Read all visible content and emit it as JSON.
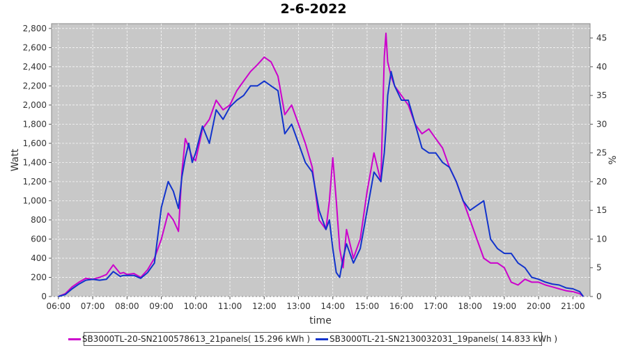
{
  "chart_data": {
    "type": "line",
    "title": "2-6-2022",
    "xlabel": "time",
    "ylabel": "Watt",
    "y2label": "%",
    "xlim": [
      5.8,
      21.5
    ],
    "ylim": [
      0,
      2850
    ],
    "y2lim": [
      0,
      47.5
    ],
    "x_ticks": [
      "06:00",
      "07:00",
      "08:00",
      "09:00",
      "10:00",
      "11:00",
      "12:00",
      "13:00",
      "14:00",
      "15:00",
      "16:00",
      "17:00",
      "18:00",
      "19:00",
      "20:00",
      "21:00"
    ],
    "y_ticks": [
      "0",
      "200",
      "400",
      "600",
      "800",
      "1,000",
      "1,200",
      "1,400",
      "1,600",
      "1,800",
      "2,000",
      "2,200",
      "2,400",
      "2,600",
      "2,800"
    ],
    "y2_ticks": [
      "0",
      "5",
      "10",
      "15",
      "20",
      "25",
      "30",
      "35",
      "40",
      "45"
    ],
    "grid": true,
    "legend_position": "bottom",
    "series": [
      {
        "name": "SB3000TL-20-SN2100578613_21panels( 15.296 kWh )",
        "color": "#cc00cc",
        "x": [
          6.0,
          6.2,
          6.4,
          6.6,
          6.8,
          7.0,
          7.2,
          7.4,
          7.6,
          7.8,
          7.9,
          8.0,
          8.2,
          8.4,
          8.6,
          8.8,
          9.0,
          9.2,
          9.35,
          9.5,
          9.6,
          9.7,
          9.8,
          9.9,
          10.0,
          10.2,
          10.4,
          10.6,
          10.8,
          11.0,
          11.2,
          11.4,
          11.6,
          11.8,
          12.0,
          12.2,
          12.4,
          12.6,
          12.8,
          13.0,
          13.2,
          13.4,
          13.6,
          13.8,
          13.9,
          14.0,
          14.1,
          14.2,
          14.3,
          14.4,
          14.6,
          14.8,
          15.0,
          15.2,
          15.4,
          15.5,
          15.55,
          15.6,
          15.7,
          15.8,
          16.0,
          16.2,
          16.4,
          16.6,
          16.8,
          17.0,
          17.2,
          17.4,
          17.6,
          17.8,
          18.0,
          18.2,
          18.4,
          18.6,
          18.8,
          19.0,
          19.2,
          19.4,
          19.6,
          19.8,
          20.0,
          20.2,
          20.4,
          20.6,
          20.8,
          21.0,
          21.2,
          21.3
        ],
        "y": [
          0,
          30,
          100,
          150,
          190,
          180,
          200,
          230,
          330,
          240,
          250,
          230,
          240,
          200,
          280,
          400,
          600,
          870,
          800,
          680,
          1300,
          1650,
          1560,
          1450,
          1420,
          1750,
          1850,
          2050,
          1950,
          2000,
          2150,
          2250,
          2350,
          2420,
          2500,
          2450,
          2300,
          1900,
          2000,
          1800,
          1600,
          1350,
          800,
          700,
          1000,
          1450,
          1000,
          500,
          300,
          700,
          400,
          600,
          1100,
          1500,
          1200,
          2500,
          2750,
          2450,
          2300,
          2200,
          2100,
          2000,
          1800,
          1700,
          1750,
          1650,
          1550,
          1350,
          1200,
          1000,
          800,
          600,
          400,
          350,
          350,
          300,
          150,
          120,
          180,
          150,
          150,
          120,
          100,
          80,
          60,
          50,
          30,
          0
        ]
      },
      {
        "name": "SB3000TL-21-SN2130032031_19panels( 14.833 kWh )",
        "color": "#1133cc",
        "x": [
          6.0,
          6.2,
          6.4,
          6.6,
          6.8,
          7.0,
          7.2,
          7.4,
          7.6,
          7.8,
          7.9,
          8.0,
          8.2,
          8.4,
          8.6,
          8.8,
          9.0,
          9.2,
          9.35,
          9.5,
          9.6,
          9.7,
          9.8,
          9.9,
          10.0,
          10.2,
          10.4,
          10.6,
          10.8,
          11.0,
          11.2,
          11.4,
          11.6,
          11.8,
          12.0,
          12.2,
          12.4,
          12.6,
          12.8,
          13.0,
          13.2,
          13.4,
          13.6,
          13.8,
          13.9,
          14.0,
          14.1,
          14.2,
          14.3,
          14.4,
          14.6,
          14.8,
          15.0,
          15.2,
          15.4,
          15.5,
          15.55,
          15.6,
          15.7,
          15.8,
          16.0,
          16.2,
          16.4,
          16.6,
          16.8,
          17.0,
          17.2,
          17.4,
          17.6,
          17.8,
          18.0,
          18.2,
          18.4,
          18.6,
          18.8,
          19.0,
          19.2,
          19.4,
          19.6,
          19.8,
          20.0,
          20.2,
          20.4,
          20.6,
          20.8,
          21.0,
          21.2,
          21.3
        ],
        "y": [
          0,
          20,
          80,
          130,
          170,
          180,
          170,
          180,
          260,
          210,
          220,
          220,
          220,
          190,
          250,
          350,
          930,
          1200,
          1100,
          920,
          1250,
          1450,
          1600,
          1400,
          1500,
          1780,
          1600,
          1950,
          1850,
          1980,
          2050,
          2100,
          2200,
          2200,
          2250,
          2200,
          2150,
          1700,
          1800,
          1600,
          1400,
          1300,
          900,
          700,
          800,
          500,
          250,
          200,
          400,
          550,
          350,
          500,
          900,
          1300,
          1200,
          1500,
          1750,
          2100,
          2350,
          2200,
          2050,
          2050,
          1800,
          1550,
          1500,
          1500,
          1400,
          1350,
          1200,
          1000,
          900,
          950,
          1000,
          600,
          500,
          450,
          450,
          350,
          300,
          200,
          180,
          150,
          130,
          120,
          90,
          80,
          50,
          0
        ]
      }
    ]
  }
}
